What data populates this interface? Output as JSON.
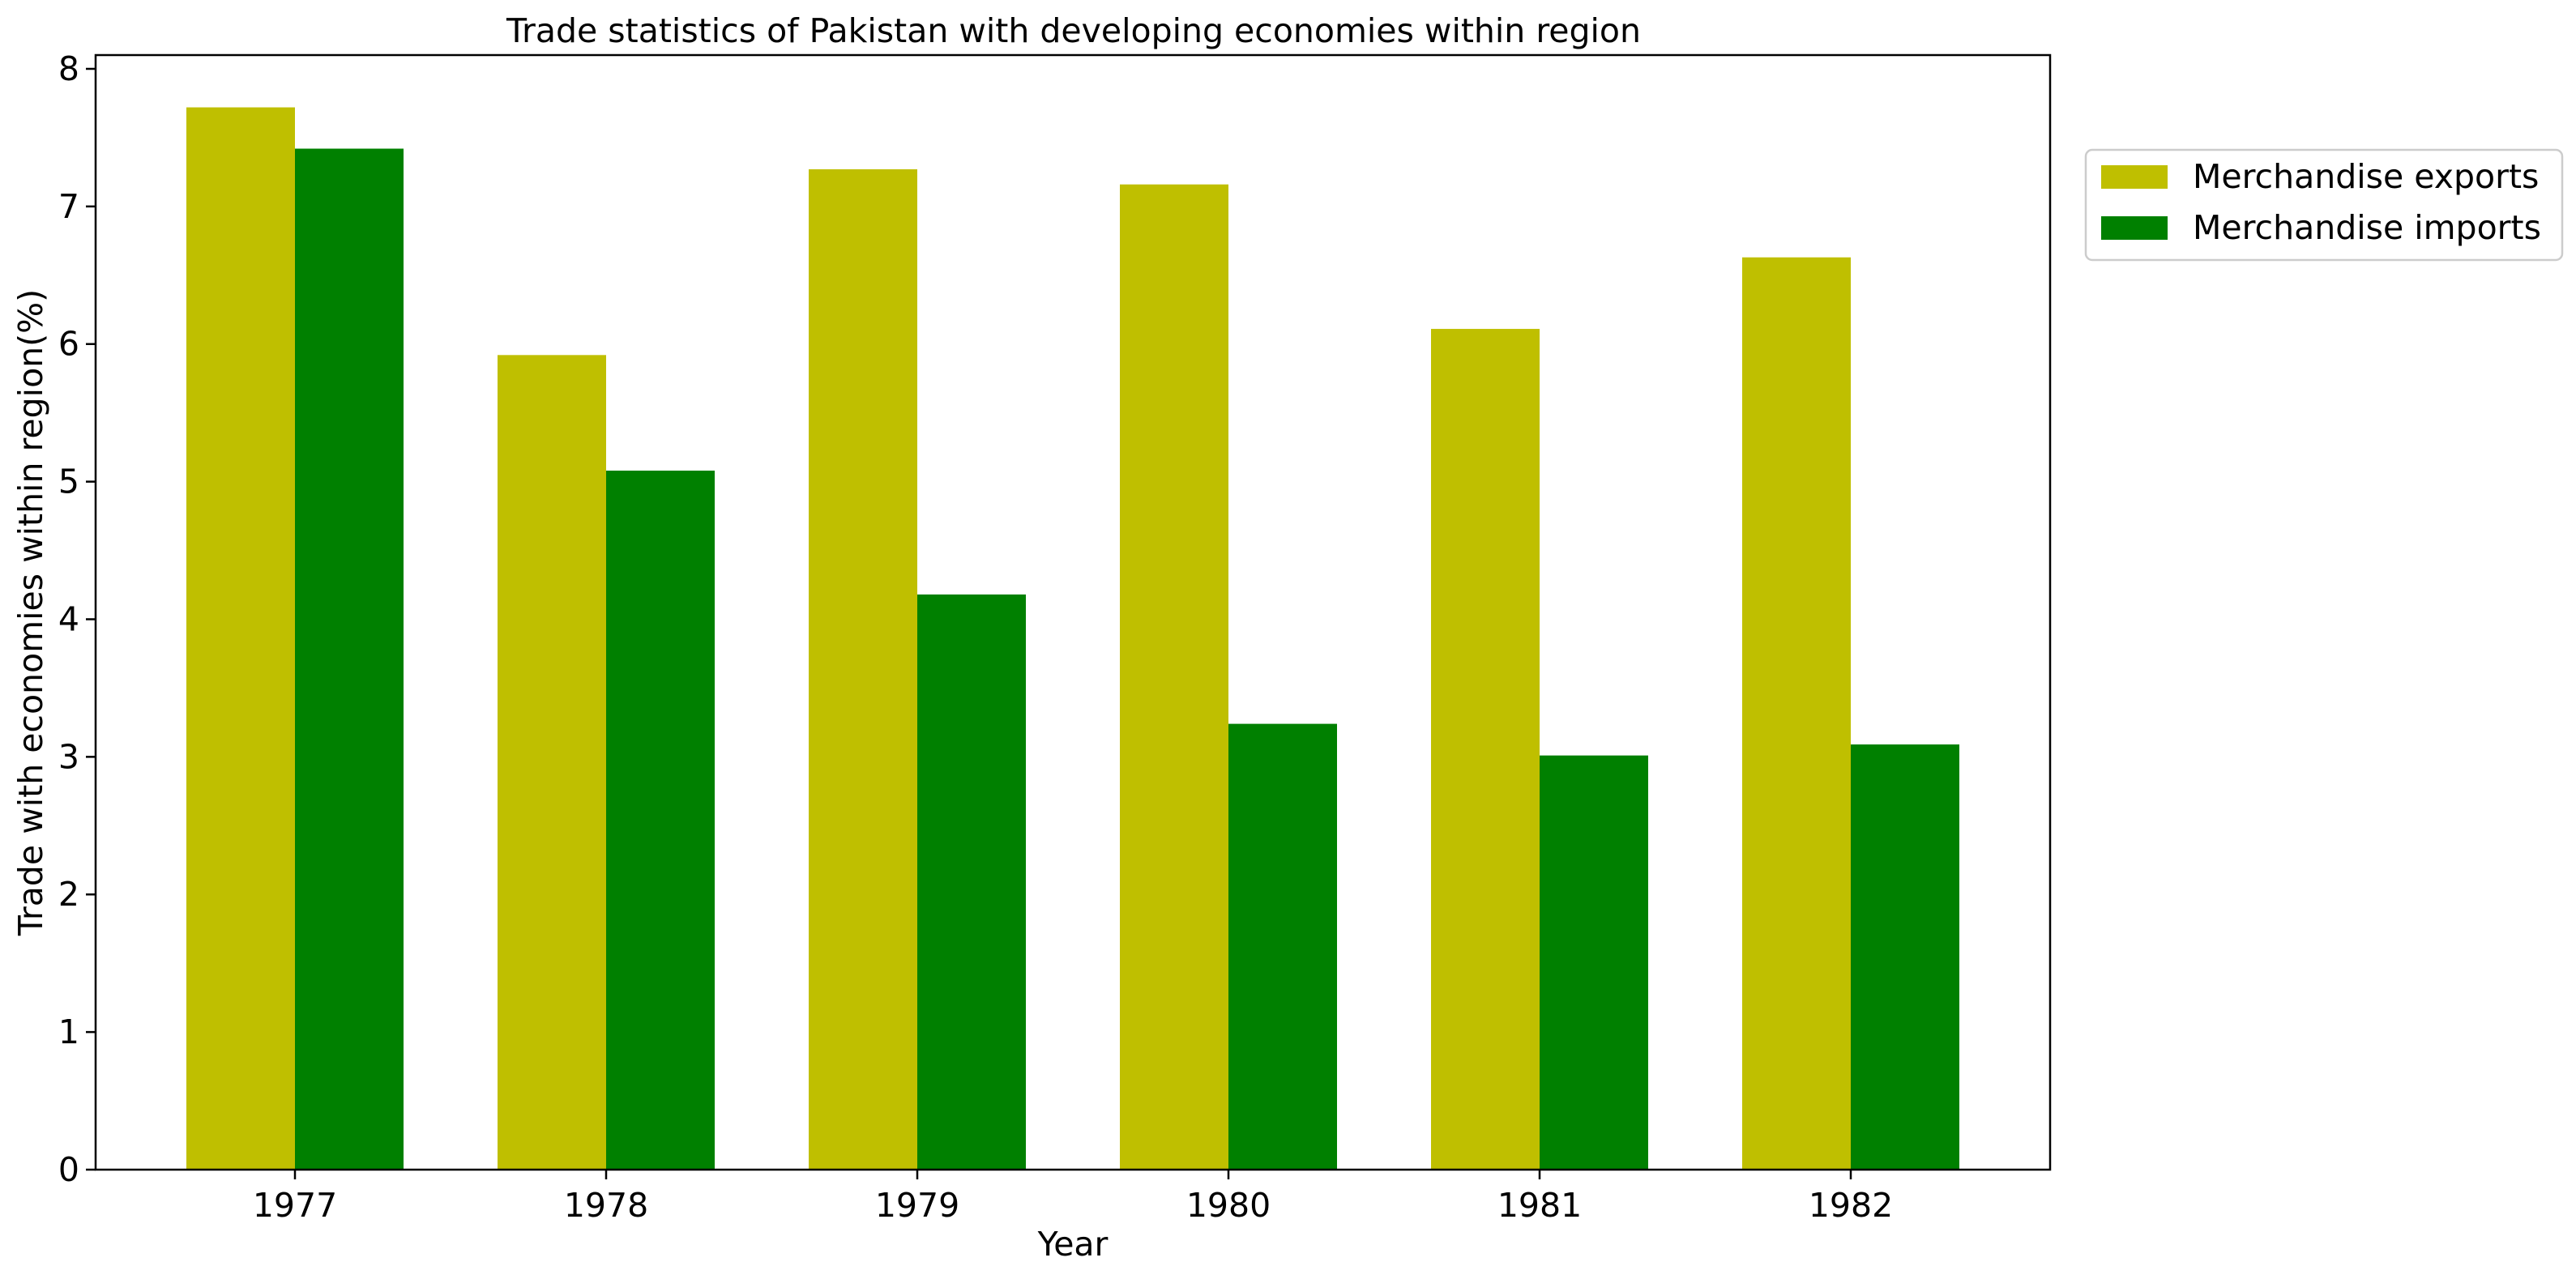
{
  "chart_data": {
    "type": "bar",
    "title": "Trade statistics of Pakistan with developing economies within region",
    "xlabel": "Year",
    "ylabel": "Trade with economies within region(%)",
    "categories": [
      "1977",
      "1978",
      "1979",
      "1980",
      "1981",
      "1982"
    ],
    "series": [
      {
        "name": "Merchandise exports",
        "color": "#bfbf00",
        "values": [
          7.72,
          5.92,
          7.27,
          7.16,
          6.11,
          6.63
        ]
      },
      {
        "name": "Merchandise imports",
        "color": "#008000",
        "values": [
          7.42,
          5.08,
          4.18,
          3.24,
          3.01,
          3.09
        ]
      }
    ],
    "ylim": [
      0,
      8.1
    ],
    "yticks": [
      "0",
      "1",
      "2",
      "3",
      "4",
      "5",
      "6",
      "7",
      "8"
    ],
    "grid": false,
    "legend_position": "outside-right-top"
  }
}
